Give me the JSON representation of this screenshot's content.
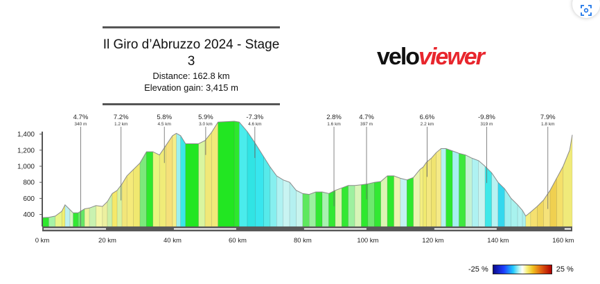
{
  "header": {
    "title": "Il Giro d’Abruzzo 2024 - Stage 3",
    "distance": "Distance: 162.8 km",
    "elevation_gain": "Elevation gain: 3,415 m"
  },
  "logo": {
    "part1": "velo",
    "part2": "viewer"
  },
  "corner_button": {
    "icon": "scan-icon"
  },
  "legend": {
    "min_label": "-25 %",
    "max_label": "25 %"
  },
  "chart_data": {
    "type": "area",
    "title": "",
    "xlabel": "",
    "ylabel": "",
    "xlim": [
      0,
      162.8
    ],
    "ylim": [
      250,
      1560
    ],
    "yticks": [
      "400",
      "600",
      "800",
      "1,000",
      "1,200",
      "1,400"
    ],
    "ytick_values": [
      400,
      600,
      800,
      1000,
      1200,
      1400
    ],
    "xticks": [
      "0 km",
      "20 km",
      "40 km",
      "60 km",
      "80 km",
      "100 km",
      "120 km",
      "140 km",
      "160 km"
    ],
    "xtick_values": [
      0,
      20,
      40,
      60,
      80,
      100,
      120,
      140,
      160
    ],
    "profile": [
      [
        0,
        360
      ],
      [
        2,
        365
      ],
      [
        4,
        380
      ],
      [
        6,
        440
      ],
      [
        7,
        520
      ],
      [
        8.5,
        460
      ],
      [
        9.5,
        420
      ],
      [
        11,
        420
      ],
      [
        13,
        470
      ],
      [
        14.5,
        480
      ],
      [
        16.5,
        510
      ],
      [
        18.5,
        500
      ],
      [
        20,
        560
      ],
      [
        21.5,
        660
      ],
      [
        23,
        700
      ],
      [
        24.5,
        780
      ],
      [
        26,
        880
      ],
      [
        28,
        960
      ],
      [
        30,
        1040
      ],
      [
        32,
        1180
      ],
      [
        34,
        1180
      ],
      [
        36,
        1140
      ],
      [
        38,
        1260
      ],
      [
        40,
        1380
      ],
      [
        41.2,
        1410
      ],
      [
        42.5,
        1380
      ],
      [
        44,
        1280
      ],
      [
        48,
        1280
      ],
      [
        50,
        1320
      ],
      [
        52,
        1420
      ],
      [
        54,
        1550
      ],
      [
        59,
        1560
      ],
      [
        60.5,
        1550
      ],
      [
        63,
        1430
      ],
      [
        65.5,
        1280
      ],
      [
        68,
        1120
      ],
      [
        70,
        990
      ],
      [
        72,
        880
      ],
      [
        74,
        830
      ],
      [
        76,
        800
      ],
      [
        78,
        700
      ],
      [
        80,
        660
      ],
      [
        82,
        650
      ],
      [
        84,
        680
      ],
      [
        86,
        680
      ],
      [
        88,
        660
      ],
      [
        90,
        700
      ],
      [
        92,
        730
      ],
      [
        94,
        760
      ],
      [
        96,
        760
      ],
      [
        98,
        770
      ],
      [
        100,
        780
      ],
      [
        102,
        800
      ],
      [
        104,
        810
      ],
      [
        106,
        880
      ],
      [
        108,
        880
      ],
      [
        110,
        850
      ],
      [
        112,
        830
      ],
      [
        114,
        860
      ],
      [
        116,
        960
      ],
      [
        117,
        990
      ],
      [
        118,
        1050
      ],
      [
        119.5,
        1100
      ],
      [
        121,
        1170
      ],
      [
        122.5,
        1220
      ],
      [
        124,
        1220
      ],
      [
        126,
        1190
      ],
      [
        128,
        1160
      ],
      [
        130,
        1140
      ],
      [
        132,
        1100
      ],
      [
        134,
        1070
      ],
      [
        136,
        1000
      ],
      [
        138,
        920
      ],
      [
        140,
        800
      ],
      [
        142,
        720
      ],
      [
        144,
        600
      ],
      [
        146,
        520
      ],
      [
        147.5,
        450
      ],
      [
        148.5,
        380
      ],
      [
        150,
        430
      ],
      [
        152,
        500
      ],
      [
        154,
        580
      ],
      [
        156,
        700
      ],
      [
        158,
        850
      ],
      [
        160,
        1000
      ],
      [
        162,
        1200
      ],
      [
        162.8,
        1390
      ]
    ],
    "segments": [
      [
        0,
        2,
        "#2ee82e"
      ],
      [
        2,
        4,
        "#a6f2a6"
      ],
      [
        4,
        6,
        "#e8f58a"
      ],
      [
        6,
        7,
        "#f0f070"
      ],
      [
        7,
        8.5,
        "#bdf0f0"
      ],
      [
        8.5,
        9.5,
        "#d6f5c4"
      ],
      [
        9.5,
        11,
        "#33e833"
      ],
      [
        11,
        13,
        "#66e666"
      ],
      [
        13,
        14.5,
        "#ecf5a0"
      ],
      [
        14.5,
        16.5,
        "#c9f2b0"
      ],
      [
        16.5,
        18.5,
        "#f4f7a8"
      ],
      [
        18.5,
        20,
        "#ecf0a0"
      ],
      [
        20,
        21.5,
        "#ccf0a8"
      ],
      [
        21.5,
        23,
        "#f5e86a"
      ],
      [
        23,
        24.5,
        "#d8f2a0"
      ],
      [
        24.5,
        26,
        "#f2e67a"
      ],
      [
        26,
        28,
        "#f5ea7a"
      ],
      [
        28,
        30,
        "#f0e870"
      ],
      [
        30,
        32,
        "#7ce87c"
      ],
      [
        32,
        34,
        "#2ee82e"
      ],
      [
        34,
        36,
        "#e8f580"
      ],
      [
        36,
        38,
        "#f0ec78"
      ],
      [
        38,
        40,
        "#f5e07a"
      ],
      [
        40,
        41.2,
        "#f4ee88"
      ],
      [
        41.2,
        42.5,
        "#9bf0f0"
      ],
      [
        42.5,
        44,
        "#3be8e8"
      ],
      [
        44,
        48,
        "#22e622"
      ],
      [
        48,
        50,
        "#d9f5a0"
      ],
      [
        50,
        52,
        "#f0e878"
      ],
      [
        52,
        54,
        "#f2ea7a"
      ],
      [
        54,
        59,
        "#22e622"
      ],
      [
        59,
        60.5,
        "#2ee82e"
      ],
      [
        60.5,
        63,
        "#4aecec"
      ],
      [
        63,
        65.5,
        "#30e4e4"
      ],
      [
        65.5,
        68,
        "#38e6ee"
      ],
      [
        68,
        70,
        "#56eaea"
      ],
      [
        70,
        72,
        "#86efef"
      ],
      [
        72,
        74,
        "#b0f2f2"
      ],
      [
        74,
        76,
        "#c8f4f2"
      ],
      [
        76,
        78,
        "#b4f0f0"
      ],
      [
        78,
        80,
        "#c8f4ee"
      ],
      [
        80,
        82,
        "#5ee85e"
      ],
      [
        82,
        84,
        "#9cf0a0"
      ],
      [
        84,
        86,
        "#33e833"
      ],
      [
        86,
        88,
        "#a8f2b0"
      ],
      [
        88,
        90,
        "#33e833"
      ],
      [
        90,
        92,
        "#dbf5b0"
      ],
      [
        92,
        94,
        "#33e833"
      ],
      [
        94,
        96,
        "#9ef0a0"
      ],
      [
        96,
        98,
        "#d7f5b8"
      ],
      [
        98,
        100,
        "#2ee82e"
      ],
      [
        100,
        102,
        "#6ee86e"
      ],
      [
        102,
        104,
        "#33e833"
      ],
      [
        104,
        106,
        "#dcf5b4"
      ],
      [
        106,
        108,
        "#2ee82e"
      ],
      [
        108,
        110,
        "#ecf5b0"
      ],
      [
        110,
        112,
        "#c4f2f2"
      ],
      [
        112,
        114,
        "#2ee82e"
      ],
      [
        114,
        116,
        "#eaf5b0"
      ],
      [
        116,
        117,
        "#f4ee80"
      ],
      [
        117,
        118,
        "#f0ea70"
      ],
      [
        118,
        119.5,
        "#f4e880"
      ],
      [
        119.5,
        121,
        "#f0e470"
      ],
      [
        121,
        122.5,
        "#f5ea88"
      ],
      [
        122.5,
        124,
        "#b6f2f2"
      ],
      [
        124,
        126,
        "#2ee82e"
      ],
      [
        126,
        128,
        "#a6f0f0"
      ],
      [
        128,
        130,
        "#3ee83e"
      ],
      [
        130,
        132,
        "#c4f2d4"
      ],
      [
        132,
        134,
        "#aef2f2"
      ],
      [
        134,
        136,
        "#c8f4f0"
      ],
      [
        136,
        138,
        "#3ee8e8"
      ],
      [
        138,
        140,
        "#b8f2f2"
      ],
      [
        140,
        142,
        "#34d8ee"
      ],
      [
        142,
        144,
        "#9ef0f0"
      ],
      [
        144,
        146,
        "#a8f2ee"
      ],
      [
        146,
        147.5,
        "#b0f2f0"
      ],
      [
        147.5,
        148.5,
        "#a8f0ee"
      ],
      [
        148.5,
        150,
        "#f5ee80"
      ],
      [
        150,
        152,
        "#f5e070"
      ],
      [
        152,
        154,
        "#f0d860"
      ],
      [
        154,
        156,
        "#f5e27a"
      ],
      [
        156,
        158,
        "#f0d050"
      ],
      [
        158,
        160,
        "#f5e06a"
      ],
      [
        160,
        162.8,
        "#f0ea7a"
      ]
    ],
    "climbs": [
      {
        "km": 11.8,
        "grade": "4.7%",
        "length": "340 m"
      },
      {
        "km": 24.2,
        "grade": "7.2%",
        "length": "1.2 km"
      },
      {
        "km": 37.5,
        "grade": "5.8%",
        "length": "4.5 km"
      },
      {
        "km": 50.2,
        "grade": "5.9%",
        "length": "3.0 km"
      },
      {
        "km": 65.3,
        "grade": "-7.3%",
        "length": "4.6 km"
      },
      {
        "km": 89.6,
        "grade": "2.8%",
        "length": "1.6 km"
      },
      {
        "km": 99.6,
        "grade": "4.7%",
        "length": "397 m"
      },
      {
        "km": 118.2,
        "grade": "6.6%",
        "length": "2.2 km"
      },
      {
        "km": 136.5,
        "grade": "-9.8%",
        "length": "319 m"
      },
      {
        "km": 155.3,
        "grade": "7.9%",
        "length": "1.8 km"
      }
    ],
    "axis_bands": [
      [
        0,
        20
      ],
      [
        40,
        60
      ],
      [
        80,
        100
      ],
      [
        120,
        140
      ],
      [
        160,
        162.8
      ]
    ]
  }
}
